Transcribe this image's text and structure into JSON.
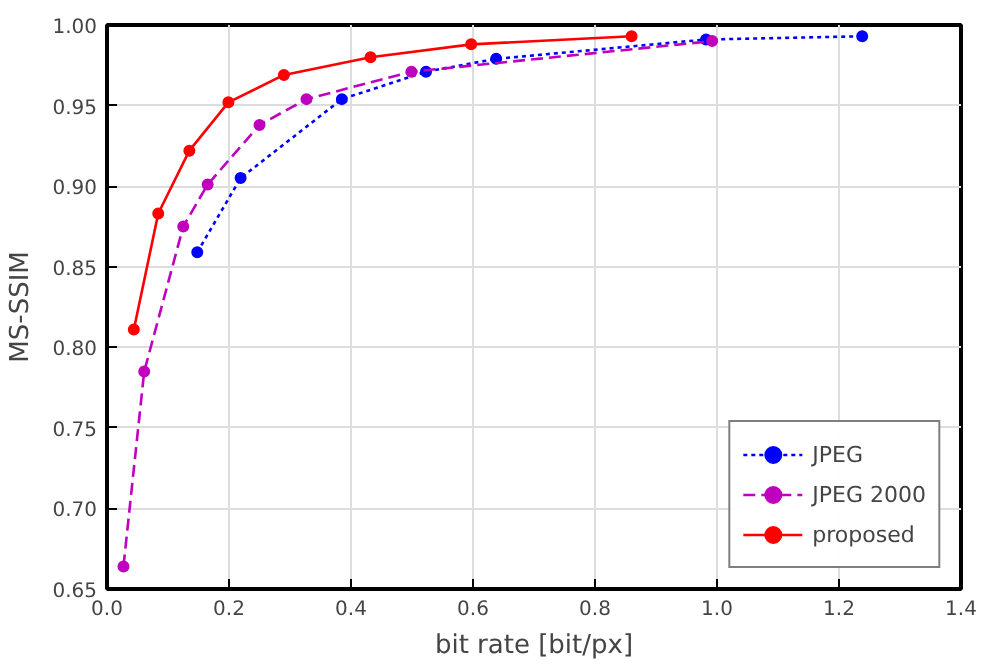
{
  "chart_data": {
    "type": "line",
    "xlabel": "bit rate [bit/px]",
    "ylabel": "MS-SSIM",
    "xlim": [
      0,
      1.4
    ],
    "ylim": [
      0.65,
      1.0
    ],
    "xticks": [
      {
        "value": 0,
        "label": "0.0"
      },
      {
        "value": 0.2,
        "label": "0.2"
      },
      {
        "value": 0.4,
        "label": "0.4"
      },
      {
        "value": 0.6,
        "label": "0.6"
      },
      {
        "value": 0.8,
        "label": "0.8"
      },
      {
        "value": 1.0,
        "label": "1.0"
      },
      {
        "value": 1.2,
        "label": "1.2"
      },
      {
        "value": 1.4,
        "label": "1.4"
      }
    ],
    "yticks": [
      {
        "value": 0.65,
        "label": "0.65"
      },
      {
        "value": 0.7,
        "label": "0.70"
      },
      {
        "value": 0.75,
        "label": "0.75"
      },
      {
        "value": 0.8,
        "label": "0.80"
      },
      {
        "value": 0.85,
        "label": "0.85"
      },
      {
        "value": 0.9,
        "label": "0.90"
      },
      {
        "value": 0.95,
        "label": "0.95"
      },
      {
        "value": 1.0,
        "label": "1.00"
      }
    ],
    "grid": true,
    "legend": "bottom right",
    "marker": "circle",
    "series": [
      {
        "name": "JPEG",
        "color": "#0000ff",
        "line_style": "dotted",
        "x": [
          0.148,
          0.219,
          0.385,
          0.523,
          0.638,
          0.982,
          1.238
        ],
        "values": [
          0.859,
          0.905,
          0.954,
          0.971,
          0.979,
          0.991,
          0.993
        ]
      },
      {
        "name": "JPEG 2000",
        "color": "#bf00bf",
        "line_style": "dashed",
        "x": [
          0.027,
          0.061,
          0.125,
          0.165,
          0.25,
          0.327,
          0.499,
          0.992
        ],
        "values": [
          0.664,
          0.785,
          0.875,
          0.901,
          0.938,
          0.954,
          0.971,
          0.99
        ]
      },
      {
        "name": "proposed",
        "color": "#ff0000",
        "line_style": "solid",
        "x": [
          0.044,
          0.084,
          0.135,
          0.199,
          0.29,
          0.432,
          0.597,
          0.86
        ],
        "values": [
          0.811,
          0.883,
          0.922,
          0.952,
          0.969,
          0.98,
          0.988,
          0.993
        ]
      }
    ]
  }
}
